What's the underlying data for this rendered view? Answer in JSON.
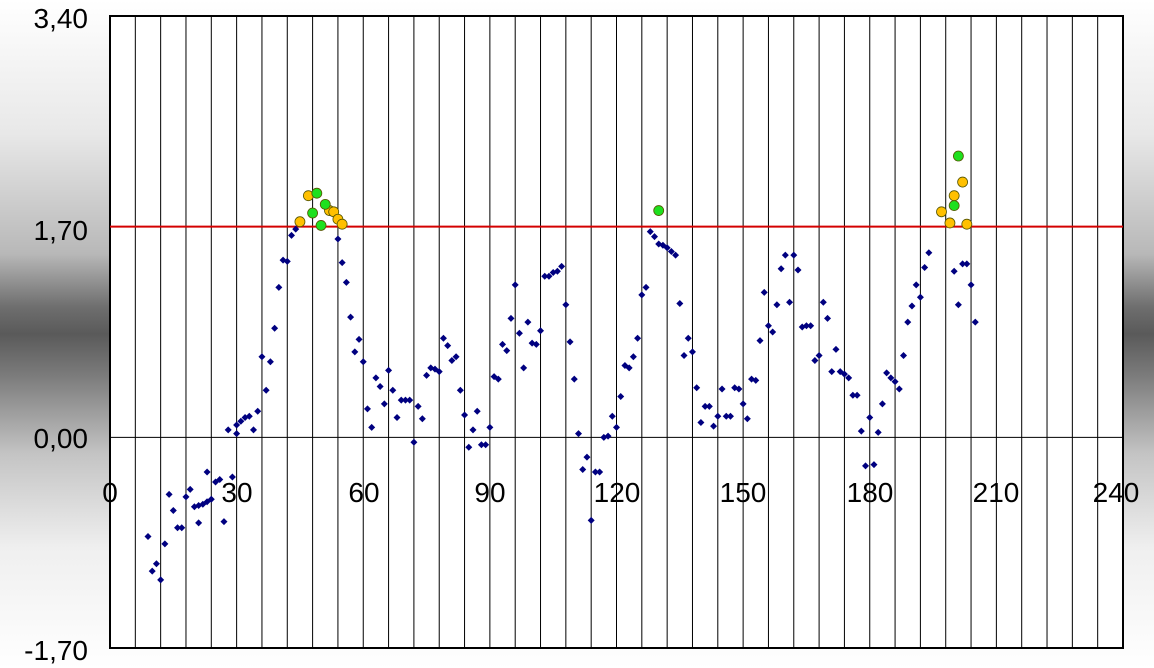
{
  "chart_data": {
    "type": "scatter",
    "title": "",
    "xlabel": "",
    "ylabel": "",
    "xlim": [
      0,
      240
    ],
    "ylim": [
      -1.7,
      3.4
    ],
    "x_ticks": [
      "0",
      "30",
      "60",
      "90",
      "120",
      "150",
      "180",
      "210",
      "240"
    ],
    "y_ticks": [
      "3,40",
      "1,70",
      "0,00",
      "-1,70"
    ],
    "vertical_grid_step": 6,
    "threshold": {
      "value": 1.7,
      "color": "#d40000"
    },
    "zero_line": {
      "value": 0,
      "color": "#000000"
    },
    "colors": {
      "main": "#000080",
      "orange": "#ffc000",
      "green": "#1ee01e"
    },
    "series": [
      {
        "marker": "diamond",
        "color": "#000080",
        "points": [
          [
            9,
            -0.8
          ],
          [
            10,
            -1.08
          ],
          [
            11,
            -1.02
          ],
          [
            12,
            -1.15
          ],
          [
            13,
            -0.86
          ],
          [
            14,
            -0.46
          ],
          [
            15,
            -0.59
          ],
          [
            16,
            -0.73
          ],
          [
            17,
            -0.73
          ],
          [
            18,
            -0.48
          ],
          [
            19,
            -0.42
          ],
          [
            20,
            -0.56
          ],
          [
            21,
            -0.69
          ],
          [
            21,
            -0.55
          ],
          [
            22,
            -0.54
          ],
          [
            23,
            -0.28
          ],
          [
            23,
            -0.52
          ],
          [
            24,
            -0.5
          ],
          [
            25,
            -0.36
          ],
          [
            26,
            -0.34
          ],
          [
            27,
            -0.68
          ],
          [
            28,
            0.06
          ],
          [
            29,
            -0.32
          ],
          [
            30,
            0.1
          ],
          [
            30,
            0.03
          ],
          [
            31,
            0.13
          ],
          [
            32,
            0.16
          ],
          [
            33,
            0.17
          ],
          [
            34,
            0.06
          ],
          [
            35,
            0.21
          ],
          [
            36,
            0.65
          ],
          [
            37,
            0.38
          ],
          [
            38,
            0.61
          ],
          [
            39,
            0.88
          ],
          [
            40,
            1.21
          ],
          [
            41,
            1.43
          ],
          [
            42,
            1.42
          ],
          [
            43,
            1.63
          ],
          [
            44,
            1.68
          ],
          [
            54,
            1.6
          ],
          [
            55,
            1.41
          ],
          [
            56,
            1.25
          ],
          [
            57,
            0.97
          ],
          [
            58,
            0.69
          ],
          [
            59,
            0.79
          ],
          [
            60,
            0.61
          ],
          [
            61,
            0.23
          ],
          [
            62,
            0.08
          ],
          [
            63,
            0.48
          ],
          [
            64,
            0.41
          ],
          [
            65,
            0.27
          ],
          [
            66,
            0.54
          ],
          [
            67,
            0.38
          ],
          [
            68,
            0.16
          ],
          [
            69,
            0.3
          ],
          [
            70,
            0.3
          ],
          [
            71,
            0.3
          ],
          [
            72,
            -0.04
          ],
          [
            73,
            0.25
          ],
          [
            74,
            0.15
          ],
          [
            75,
            0.5
          ],
          [
            76,
            0.56
          ],
          [
            77,
            0.55
          ],
          [
            78,
            0.53
          ],
          [
            79,
            0.8
          ],
          [
            80,
            0.74
          ],
          [
            81,
            0.62
          ],
          [
            82,
            0.65
          ],
          [
            83,
            0.38
          ],
          [
            84,
            0.18
          ],
          [
            85,
            -0.08
          ],
          [
            86,
            0.06
          ],
          [
            87,
            0.21
          ],
          [
            88,
            -0.06
          ],
          [
            89,
            -0.06
          ],
          [
            90,
            0.08
          ],
          [
            91,
            0.49
          ],
          [
            92,
            0.47
          ],
          [
            93,
            0.75
          ],
          [
            94,
            0.7
          ],
          [
            95,
            0.96
          ],
          [
            96,
            1.23
          ],
          [
            97,
            0.84
          ],
          [
            98,
            0.56
          ],
          [
            99,
            0.93
          ],
          [
            100,
            0.76
          ],
          [
            101,
            0.75
          ],
          [
            102,
            0.86
          ],
          [
            103,
            1.3
          ],
          [
            104,
            1.3
          ],
          [
            105,
            1.33
          ],
          [
            106,
            1.34
          ],
          [
            107,
            1.38
          ],
          [
            108,
            1.07
          ],
          [
            109,
            0.77
          ],
          [
            110,
            0.47
          ],
          [
            111,
            0.03
          ],
          [
            112,
            -0.26
          ],
          [
            113,
            -0.16
          ],
          [
            114,
            -0.67
          ],
          [
            115,
            -0.28
          ],
          [
            116,
            -0.28
          ],
          [
            117,
            0.0
          ],
          [
            118,
            0.01
          ],
          [
            119,
            0.17
          ],
          [
            120,
            0.08
          ],
          [
            121,
            0.33
          ],
          [
            122,
            0.58
          ],
          [
            123,
            0.56
          ],
          [
            124,
            0.65
          ],
          [
            125,
            0.8
          ],
          [
            126,
            1.15
          ],
          [
            127,
            1.21
          ],
          [
            128,
            1.66
          ],
          [
            129,
            1.62
          ],
          [
            130,
            1.56
          ],
          [
            131,
            1.55
          ],
          [
            132,
            1.53
          ],
          [
            133,
            1.5
          ],
          [
            134,
            1.47
          ],
          [
            135,
            1.08
          ],
          [
            136,
            0.66
          ],
          [
            137,
            0.8
          ],
          [
            138,
            0.69
          ],
          [
            139,
            0.4
          ],
          [
            140,
            0.12
          ],
          [
            141,
            0.25
          ],
          [
            142,
            0.25
          ],
          [
            143,
            0.09
          ],
          [
            144,
            0.17
          ],
          [
            145,
            0.39
          ],
          [
            146,
            0.17
          ],
          [
            147,
            0.17
          ],
          [
            148,
            0.4
          ],
          [
            149,
            0.39
          ],
          [
            150,
            0.27
          ],
          [
            151,
            0.15
          ],
          [
            152,
            0.47
          ],
          [
            153,
            0.46
          ],
          [
            154,
            0.78
          ],
          [
            155,
            1.17
          ],
          [
            156,
            0.9
          ],
          [
            157,
            0.85
          ],
          [
            158,
            1.07
          ],
          [
            159,
            1.36
          ],
          [
            160,
            1.47
          ],
          [
            161,
            1.09
          ],
          [
            162,
            1.47
          ],
          [
            163,
            1.35
          ],
          [
            164,
            0.89
          ],
          [
            165,
            0.9
          ],
          [
            166,
            0.9
          ],
          [
            167,
            0.62
          ],
          [
            168,
            0.66
          ],
          [
            169,
            1.09
          ],
          [
            170,
            0.96
          ],
          [
            171,
            0.53
          ],
          [
            172,
            0.71
          ],
          [
            173,
            0.53
          ],
          [
            174,
            0.51
          ],
          [
            175,
            0.48
          ],
          [
            176,
            0.34
          ],
          [
            177,
            0.34
          ],
          [
            178,
            0.05
          ],
          [
            179,
            -0.23
          ],
          [
            180,
            0.16
          ],
          [
            181,
            -0.22
          ],
          [
            182,
            0.04
          ],
          [
            183,
            0.27
          ],
          [
            184,
            0.52
          ],
          [
            185,
            0.48
          ],
          [
            186,
            0.45
          ],
          [
            187,
            0.39
          ],
          [
            188,
            0.66
          ],
          [
            189,
            0.93
          ],
          [
            190,
            1.06
          ],
          [
            191,
            1.23
          ],
          [
            192,
            1.13
          ],
          [
            193,
            1.37
          ],
          [
            194,
            1.49
          ],
          [
            200,
            1.34
          ],
          [
            201,
            1.07
          ],
          [
            202,
            1.4
          ],
          [
            203,
            1.4
          ],
          [
            204,
            1.23
          ],
          [
            205,
            0.93
          ]
        ]
      },
      {
        "marker": "circle",
        "color": "#ffc000",
        "points": [
          [
            45,
            1.74
          ],
          [
            47,
            1.95
          ],
          [
            52,
            1.83
          ],
          [
            53,
            1.82
          ],
          [
            54,
            1.76
          ],
          [
            55,
            1.72
          ],
          [
            197,
            1.82
          ],
          [
            199,
            1.73
          ],
          [
            200,
            1.95
          ],
          [
            202,
            2.06
          ],
          [
            203,
            1.72
          ]
        ]
      },
      {
        "marker": "circle",
        "color": "#1ee01e",
        "points": [
          [
            48,
            1.81
          ],
          [
            49,
            1.97
          ],
          [
            50,
            1.71
          ],
          [
            51,
            1.88
          ],
          [
            130,
            1.83
          ],
          [
            200,
            1.87
          ],
          [
            201,
            2.27
          ]
        ]
      }
    ]
  }
}
